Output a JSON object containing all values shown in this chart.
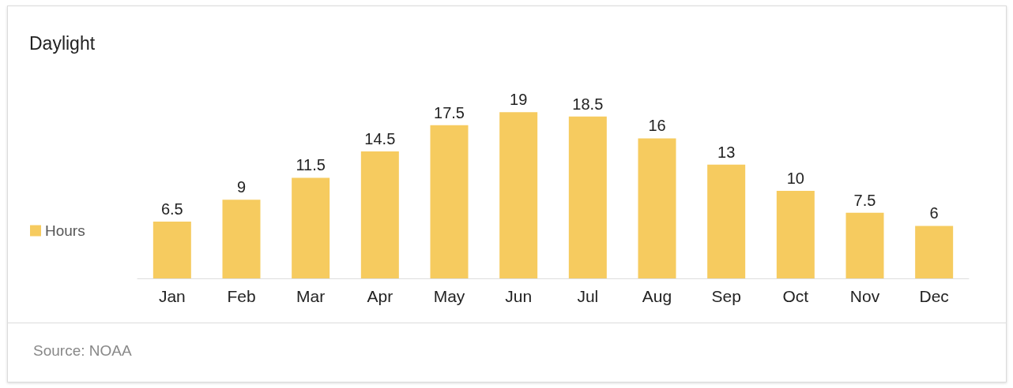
{
  "chart_data": {
    "type": "bar",
    "title": "Daylight",
    "categories": [
      "Jan",
      "Feb",
      "Mar",
      "Apr",
      "May",
      "Jun",
      "Jul",
      "Aug",
      "Sep",
      "Oct",
      "Nov",
      "Dec"
    ],
    "series": [
      {
        "name": "Hours",
        "color": "#f6cb5f",
        "values": [
          6.5,
          9,
          11.5,
          14.5,
          17.5,
          19,
          18.5,
          16,
          13,
          10,
          7.5,
          6
        ]
      }
    ],
    "data_labels": true,
    "legend": "left",
    "grid": false,
    "annotations": [
      "Source: NOAA"
    ]
  }
}
